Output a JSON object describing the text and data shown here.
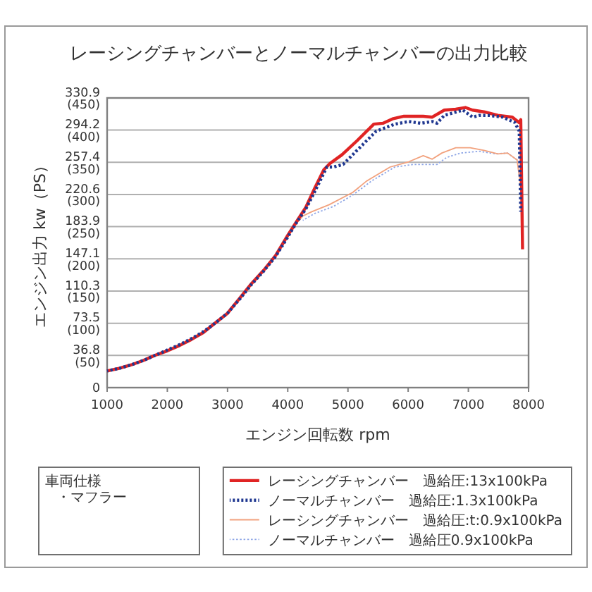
{
  "chart_data": {
    "type": "line",
    "title": "レーシングチャンバーとノーマルチャンバーの出力比較",
    "xlabel": "エンジン回転数 rpm",
    "ylabel": "エンジン出力 kw（PS）",
    "xlim": [
      1000,
      8000
    ],
    "xticks": [
      1000,
      2000,
      3000,
      4000,
      5000,
      6000,
      7000,
      8000
    ],
    "ylim": [
      0,
      330.9
    ],
    "yticks": [
      0,
      36.8,
      73.5,
      110.3,
      147.1,
      183.9,
      220.6,
      257.4,
      294.2,
      330.9
    ],
    "y2lim": [
      0,
      450
    ],
    "y2ticks": [
      {
        "value": 50,
        "label": "(50)"
      },
      {
        "value": 100,
        "label": "(100)"
      },
      {
        "value": 150,
        "label": "(150)"
      },
      {
        "value": 200,
        "label": "(200)"
      },
      {
        "value": 250,
        "label": "(250)"
      },
      {
        "value": 300,
        "label": "(300)"
      },
      {
        "value": 350,
        "label": "(350)"
      },
      {
        "value": 400,
        "label": "(400)"
      },
      {
        "value": 450,
        "label": "(450)"
      }
    ],
    "grid": "y",
    "legend": "bottom right",
    "annotations": [
      "車両仕様",
      "・マフラー"
    ],
    "series": [
      {
        "name": "レーシングチャンバー　過給圧:13x100kPa",
        "color": "#e02424",
        "line_style": "solid",
        "x": [
          1000,
          1200,
          1400,
          1600,
          1800,
          2000,
          2200,
          2400,
          2600,
          2800,
          3000,
          3200,
          3400,
          3600,
          3800,
          4000,
          4150,
          4300,
          4450,
          4600,
          4700,
          4900,
          5150,
          5430,
          5580,
          5740,
          5930,
          6250,
          6400,
          6600,
          6790,
          6950,
          7070,
          7260,
          7490,
          7730,
          7840,
          7870,
          7900
        ],
        "values": [
          19,
          22,
          26,
          31,
          37,
          42,
          48,
          55,
          63,
          74,
          85,
          102,
          119,
          134,
          151,
          174,
          190,
          206,
          228,
          249,
          256,
          266,
          282,
          301,
          302,
          307,
          310,
          310,
          309,
          317,
          318,
          320,
          317,
          315,
          311,
          309,
          303,
          306,
          158
        ]
      },
      {
        "name": "ノーマルチャンバー　過給圧:1.3x100kPa",
        "color": "#1f3790",
        "line_style": "dotted",
        "x": [
          1000,
          1200,
          1400,
          1600,
          1800,
          2000,
          2200,
          2400,
          2600,
          2800,
          3000,
          3200,
          3400,
          3600,
          3800,
          4000,
          4150,
          4300,
          4450,
          4600,
          4650,
          4760,
          4920,
          5150,
          5470,
          5780,
          6010,
          6210,
          6400,
          6480,
          6600,
          6910,
          7070,
          7180,
          7340,
          7570,
          7770,
          7845,
          7870
        ],
        "values": [
          19,
          22,
          26,
          31,
          37,
          43,
          49,
          56,
          64,
          74,
          85,
          101,
          118,
          133,
          150,
          172,
          189,
          204,
          224,
          245,
          252,
          252,
          255,
          271,
          293,
          301,
          304,
          302,
          304,
          302,
          311,
          317,
          309,
          311,
          311,
          309,
          303,
          293,
          201
        ]
      },
      {
        "name": "レーシングチャンバー　過給圧:t:0.9x100kPa",
        "color": "#f2a27e",
        "line_style": "solid",
        "x": [
          1000,
          1200,
          1400,
          1600,
          1800,
          2000,
          2200,
          2400,
          2600,
          2800,
          3000,
          3200,
          3400,
          3600,
          3800,
          4000,
          4150,
          4250,
          4400,
          4690,
          5080,
          5310,
          5700,
          6010,
          6250,
          6400,
          6560,
          6790,
          7030,
          7260,
          7490,
          7650,
          7810,
          7880
        ],
        "values": [
          19,
          22,
          26,
          31,
          37,
          42,
          48,
          55,
          63,
          74,
          85,
          102,
          119,
          134,
          150,
          172,
          188,
          196,
          201,
          209,
          223,
          236,
          252,
          258,
          265,
          261,
          268,
          274,
          274,
          271,
          267,
          268,
          260,
          223
        ]
      },
      {
        "name": "ノーマルチャンバー　過給圧0.9x100kPa",
        "color": "#8ea6e6",
        "line_style": "dotted",
        "x": [
          4250,
          4450,
          4760,
          5080,
          5390,
          5780,
          6090,
          6480,
          6640,
          6870,
          7180,
          7460,
          7650,
          7810,
          7870
        ],
        "values": [
          191,
          199,
          207,
          220,
          236,
          252,
          255,
          255,
          263,
          268,
          270,
          267,
          268,
          260,
          241
        ]
      }
    ]
  }
}
